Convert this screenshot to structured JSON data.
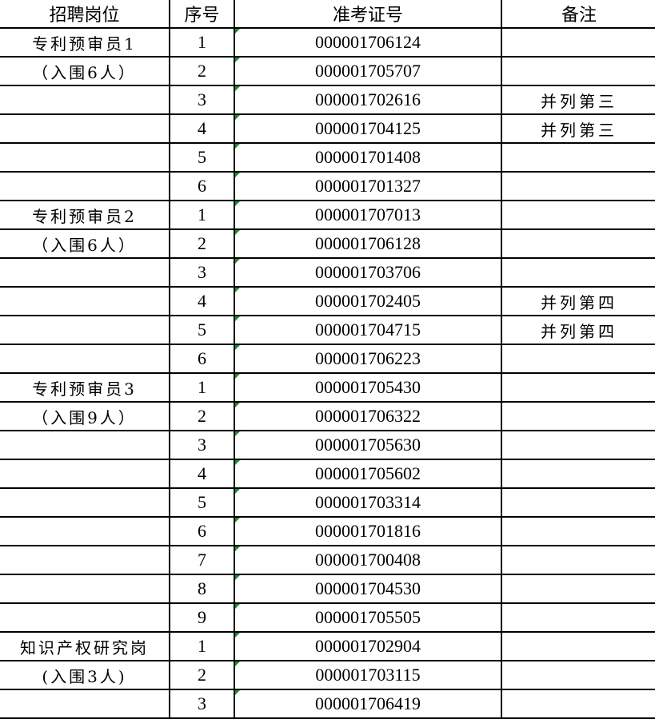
{
  "headers": [
    "招聘岗位",
    "序号",
    "准考证号",
    "备注"
  ],
  "groups": [
    {
      "name": "专利预审员1",
      "quota": "（入围6人）",
      "rows": [
        {
          "no": "1",
          "id": "000001706124",
          "note": ""
        },
        {
          "no": "2",
          "id": "000001705707",
          "note": ""
        },
        {
          "no": "3",
          "id": "000001702616",
          "note": "并列第三"
        },
        {
          "no": "4",
          "id": "000001704125",
          "note": "并列第三"
        },
        {
          "no": "5",
          "id": "000001701408",
          "note": ""
        },
        {
          "no": "6",
          "id": "000001701327",
          "note": ""
        }
      ]
    },
    {
      "name": "专利预审员2",
      "quota": "（入围6人）",
      "rows": [
        {
          "no": "1",
          "id": "000001707013",
          "note": ""
        },
        {
          "no": "2",
          "id": "000001706128",
          "note": ""
        },
        {
          "no": "3",
          "id": "000001703706",
          "note": ""
        },
        {
          "no": "4",
          "id": "000001702405",
          "note": "并列第四"
        },
        {
          "no": "5",
          "id": "000001704715",
          "note": "并列第四"
        },
        {
          "no": "6",
          "id": "000001706223",
          "note": ""
        }
      ]
    },
    {
      "name": "专利预审员3",
      "quota": "（入围9人）",
      "rows": [
        {
          "no": "1",
          "id": "000001705430",
          "note": ""
        },
        {
          "no": "2",
          "id": "000001706322",
          "note": ""
        },
        {
          "no": "3",
          "id": "000001705630",
          "note": ""
        },
        {
          "no": "4",
          "id": "000001705602",
          "note": ""
        },
        {
          "no": "5",
          "id": "000001703314",
          "note": ""
        },
        {
          "no": "6",
          "id": "000001701816",
          "note": ""
        },
        {
          "no": "7",
          "id": "000001700408",
          "note": ""
        },
        {
          "no": "8",
          "id": "000001704530",
          "note": ""
        },
        {
          "no": "9",
          "id": "000001705505",
          "note": ""
        }
      ]
    },
    {
      "name": "知识产权研究岗",
      "quota": "(入围3人)",
      "rows": [
        {
          "no": "1",
          "id": "000001702904",
          "note": ""
        },
        {
          "no": "2",
          "id": "000001703115",
          "note": ""
        },
        {
          "no": "3",
          "id": "000001706419",
          "note": ""
        }
      ]
    }
  ]
}
